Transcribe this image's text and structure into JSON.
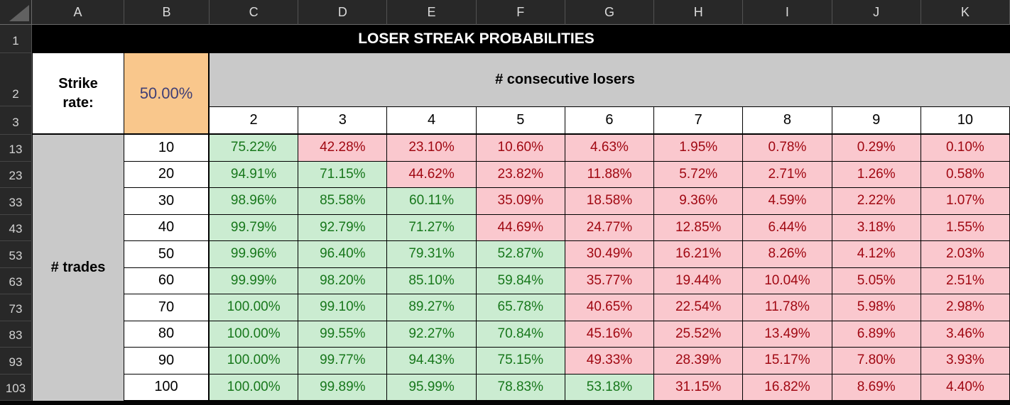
{
  "sheet": {
    "title": "LOSER STREAK PROBABILITIES",
    "column_headers": [
      "A",
      "B",
      "C",
      "D",
      "E",
      "F",
      "G",
      "H",
      "I",
      "J",
      "K"
    ],
    "row_headers": [
      "1",
      "2",
      "3",
      "13",
      "23",
      "33",
      "43",
      "53",
      "63",
      "73",
      "83",
      "93",
      "103"
    ],
    "strike_rate": {
      "label": "Strike rate:",
      "value": "50.00%"
    },
    "consecutive_losers": {
      "label": "# consecutive losers",
      "counts": [
        "2",
        "3",
        "4",
        "5",
        "6",
        "7",
        "8",
        "9",
        "10"
      ]
    },
    "trades_label": "# trades",
    "probabilities": {
      "rows": [
        {
          "trades": "10",
          "values": [
            "75.22%",
            "42.28%",
            "23.10%",
            "10.60%",
            "4.63%",
            "1.95%",
            "0.78%",
            "0.29%",
            "0.10%"
          ]
        },
        {
          "trades": "20",
          "values": [
            "94.91%",
            "71.15%",
            "44.62%",
            "23.82%",
            "11.88%",
            "5.72%",
            "2.71%",
            "1.26%",
            "0.58%"
          ]
        },
        {
          "trades": "30",
          "values": [
            "98.96%",
            "85.58%",
            "60.11%",
            "35.09%",
            "18.58%",
            "9.36%",
            "4.59%",
            "2.22%",
            "1.07%"
          ]
        },
        {
          "trades": "40",
          "values": [
            "99.79%",
            "92.79%",
            "71.27%",
            "44.69%",
            "24.77%",
            "12.85%",
            "6.44%",
            "3.18%",
            "1.55%"
          ]
        },
        {
          "trades": "50",
          "values": [
            "99.96%",
            "96.40%",
            "79.31%",
            "52.87%",
            "30.49%",
            "16.21%",
            "8.26%",
            "4.12%",
            "2.03%"
          ]
        },
        {
          "trades": "60",
          "values": [
            "99.99%",
            "98.20%",
            "85.10%",
            "59.84%",
            "35.77%",
            "19.44%",
            "10.04%",
            "5.05%",
            "2.51%"
          ]
        },
        {
          "trades": "70",
          "values": [
            "100.00%",
            "99.10%",
            "89.27%",
            "65.78%",
            "40.65%",
            "22.54%",
            "11.78%",
            "5.98%",
            "2.98%"
          ]
        },
        {
          "trades": "80",
          "values": [
            "100.00%",
            "99.55%",
            "92.27%",
            "70.84%",
            "45.16%",
            "25.52%",
            "13.49%",
            "6.89%",
            "3.46%"
          ]
        },
        {
          "trades": "90",
          "values": [
            "100.00%",
            "99.77%",
            "94.43%",
            "75.15%",
            "49.33%",
            "28.39%",
            "15.17%",
            "7.80%",
            "3.93%"
          ]
        },
        {
          "trades": "100",
          "values": [
            "100.00%",
            "99.89%",
            "95.99%",
            "78.83%",
            "53.18%",
            "31.15%",
            "16.82%",
            "8.69%",
            "4.40%"
          ]
        }
      ],
      "good_threshold_percent": 50
    },
    "colors": {
      "good_bg": "#CBECD1",
      "good_text": "#17771B",
      "bad_bg": "#FAC8CE",
      "bad_text": "#A00812",
      "input_bg": "#F9C78C",
      "input_text": "#3F3F76",
      "band_gray": "#C9C9C9",
      "header_bg": "#282828",
      "banner_bg": "#000000"
    }
  }
}
